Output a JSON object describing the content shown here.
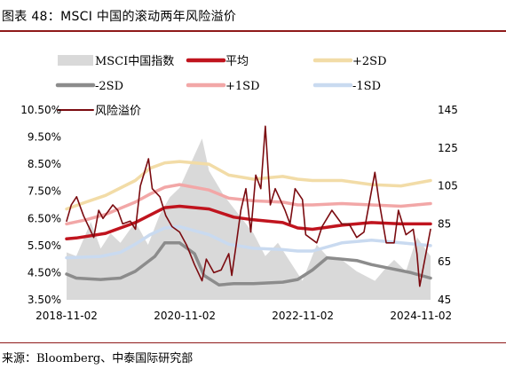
{
  "figure": {
    "title": "图表 48：MSCI 中国的滚动两年风险溢价",
    "source": "来源：Bloomberg、中泰国际研究部"
  },
  "chart_data": {
    "type": "line",
    "title": "图表 48：MSCI 中国的滚动两年风险溢价",
    "x_tick_labels": [
      "2018-11-02",
      "2020-11-02",
      "2022-11-02",
      "2024-11-02"
    ],
    "x_range": [
      "2018-11-02",
      "2024-12-31"
    ],
    "y_left": {
      "ticks": [
        "3.50%",
        "4.50%",
        "5.50%",
        "6.50%",
        "7.50%",
        "8.50%",
        "9.50%",
        "10.50%"
      ],
      "range": [
        3.5,
        10.5
      ]
    },
    "y_right": {
      "ticks": [
        "45",
        "65",
        "85",
        "105",
        "125",
        "145"
      ],
      "range": [
        45,
        145
      ]
    },
    "grid": false,
    "legend_position": "top",
    "legend": [
      "MSCI中国指数",
      "平均",
      "+2SD",
      "-2SD",
      "+1SD",
      "-1SD",
      "风险溢价"
    ],
    "series": [
      {
        "name": "MSCI中国指数",
        "axis": "right",
        "style": "area",
        "color": "#d9d9d9",
        "x": [
          "2018-11-02",
          "2019-01-01",
          "2019-04-01",
          "2019-06-01",
          "2019-08-01",
          "2019-10-01",
          "2020-01-01",
          "2020-03-20",
          "2020-06-01",
          "2020-08-01",
          "2020-10-01",
          "2021-02-17",
          "2021-04-01",
          "2021-07-01",
          "2021-10-01",
          "2022-01-01",
          "2022-03-15",
          "2022-06-01",
          "2022-10-31",
          "2023-01-27",
          "2023-04-01",
          "2023-07-01",
          "2023-10-01",
          "2024-01-22",
          "2024-04-01",
          "2024-05-20",
          "2024-08-01",
          "2024-10-08",
          "2024-12-31"
        ],
        "values": [
          70,
          68,
          86,
          72,
          80,
          75,
          86,
          74,
          90,
          99,
          104,
          130,
          113,
          100,
          90,
          80,
          68,
          75,
          55,
          74,
          68,
          66,
          60,
          55,
          62,
          66,
          60,
          78,
          68
        ]
      },
      {
        "name": "风险溢价",
        "axis": "left",
        "color": "#7b0b10",
        "x": [
          "2018-11-02",
          "2018-12-01",
          "2019-01-03",
          "2019-02-15",
          "2019-04-19",
          "2019-05-20",
          "2019-06-15",
          "2019-08-15",
          "2019-09-15",
          "2019-10-15",
          "2019-12-01",
          "2020-01-02",
          "2020-02-01",
          "2020-03-23",
          "2020-04-15",
          "2020-06-01",
          "2020-07-08",
          "2020-08-15",
          "2020-10-01",
          "2020-11-15",
          "2021-01-01",
          "2021-02-17",
          "2021-03-15",
          "2021-05-01",
          "2021-06-15",
          "2021-08-01",
          "2021-08-20",
          "2021-09-15",
          "2021-10-15",
          "2021-11-15",
          "2021-12-15",
          "2022-01-15",
          "2022-02-15",
          "2022-03-15",
          "2022-04-15",
          "2022-05-15",
          "2022-06-15",
          "2022-07-15",
          "2022-08-15",
          "2022-09-15",
          "2022-10-31",
          "2022-11-20",
          "2023-01-27",
          "2023-03-01",
          "2023-05-01",
          "2023-07-01",
          "2023-08-15",
          "2023-10-01",
          "2023-11-15",
          "2024-01-22",
          "2024-02-15",
          "2024-04-01",
          "2024-05-20",
          "2024-06-15",
          "2024-08-01",
          "2024-09-15",
          "2024-10-08",
          "2024-10-25",
          "2024-12-31"
        ],
        "values": [
          6.4,
          7.0,
          7.3,
          6.6,
          5.8,
          6.8,
          6.5,
          7.0,
          6.8,
          6.3,
          6.4,
          6.1,
          7.7,
          8.7,
          7.6,
          7.3,
          6.6,
          6.2,
          6.0,
          5.5,
          4.8,
          4.2,
          5.0,
          4.5,
          4.6,
          5.2,
          4.4,
          5.5,
          6.8,
          7.6,
          6.0,
          8.1,
          7.6,
          9.9,
          7.0,
          7.6,
          7.2,
          6.8,
          6.3,
          7.6,
          7.2,
          5.9,
          5.6,
          6.2,
          6.8,
          6.3,
          6.3,
          5.8,
          6.0,
          8.2,
          7.2,
          5.6,
          5.6,
          6.8,
          5.9,
          6.1,
          5.2,
          4.0,
          6.1
        ]
      },
      {
        "name": "平均",
        "axis": "left",
        "color": "#c0141e",
        "x": [
          "2018-11-02",
          "2019-01-01",
          "2019-07-01",
          "2020-01-01",
          "2020-07-01",
          "2020-10-01",
          "2021-04-01",
          "2021-09-01",
          "2022-01-01",
          "2022-07-01",
          "2022-10-01",
          "2023-01-01",
          "2023-07-01",
          "2024-01-01",
          "2024-07-01",
          "2024-12-31"
        ],
        "values": [
          5.75,
          5.78,
          5.95,
          6.35,
          6.9,
          6.95,
          6.85,
          6.55,
          6.45,
          6.35,
          6.15,
          6.1,
          6.25,
          6.35,
          6.3,
          6.3
        ]
      },
      {
        "name": "+2SD",
        "axis": "left",
        "color": "#f2dca7",
        "x": [
          "2018-11-02",
          "2019-03-01",
          "2019-07-01",
          "2020-01-01",
          "2020-04-01",
          "2020-07-01",
          "2020-10-01",
          "2021-04-01",
          "2021-08-01",
          "2022-01-01",
          "2022-07-01",
          "2022-10-01",
          "2023-01-01",
          "2023-07-01",
          "2024-01-01",
          "2024-07-01",
          "2024-12-31"
        ],
        "values": [
          6.85,
          7.1,
          7.35,
          7.9,
          8.35,
          8.55,
          8.6,
          8.5,
          8.1,
          7.95,
          8.05,
          7.95,
          7.9,
          7.9,
          7.75,
          7.7,
          7.9
        ]
      },
      {
        "name": "-2SD",
        "axis": "left",
        "color": "#8c8c8c",
        "x": [
          "2018-11-02",
          "2019-01-01",
          "2019-06-01",
          "2019-10-01",
          "2020-01-01",
          "2020-05-01",
          "2020-07-01",
          "2020-10-01",
          "2021-01-01",
          "2021-03-01",
          "2021-06-01",
          "2021-09-01",
          "2022-01-01",
          "2022-07-01",
          "2022-10-01",
          "2023-01-01",
          "2023-04-01",
          "2023-10-01",
          "2024-01-01",
          "2024-05-01",
          "2024-09-01",
          "2024-12-31"
        ],
        "values": [
          4.45,
          4.3,
          4.25,
          4.3,
          4.55,
          5.1,
          5.6,
          5.6,
          5.2,
          4.4,
          4.05,
          4.1,
          4.1,
          4.15,
          4.25,
          4.6,
          5.05,
          4.95,
          4.8,
          4.65,
          4.5,
          4.3
        ]
      },
      {
        "name": "+1SD",
        "axis": "left",
        "color": "#f2a7a7",
        "x": [
          "2018-11-02",
          "2019-03-01",
          "2019-07-01",
          "2020-01-01",
          "2020-04-01",
          "2020-07-01",
          "2020-10-01",
          "2021-04-01",
          "2021-08-01",
          "2022-01-01",
          "2022-07-01",
          "2022-10-01",
          "2023-01-01",
          "2023-07-01",
          "2024-01-01",
          "2024-07-01",
          "2024-12-31"
        ],
        "values": [
          6.3,
          6.45,
          6.65,
          7.1,
          7.4,
          7.65,
          7.75,
          7.55,
          7.25,
          7.15,
          7.1,
          7.0,
          7.0,
          7.05,
          7.0,
          6.95,
          7.05
        ]
      },
      {
        "name": "-1SD",
        "axis": "left",
        "color": "#c9daf0",
        "x": [
          "2018-11-02",
          "2019-06-01",
          "2019-10-01",
          "2020-01-01",
          "2020-04-01",
          "2020-07-01",
          "2020-10-01",
          "2021-04-01",
          "2021-08-01",
          "2022-01-01",
          "2022-07-01",
          "2022-10-01",
          "2023-01-01",
          "2023-07-01",
          "2024-01-01",
          "2024-07-01",
          "2024-12-31"
        ],
        "values": [
          5.05,
          5.1,
          5.25,
          5.55,
          5.9,
          6.15,
          6.2,
          5.9,
          5.55,
          5.4,
          5.35,
          5.3,
          5.3,
          5.6,
          5.7,
          5.6,
          5.5
        ]
      }
    ]
  }
}
